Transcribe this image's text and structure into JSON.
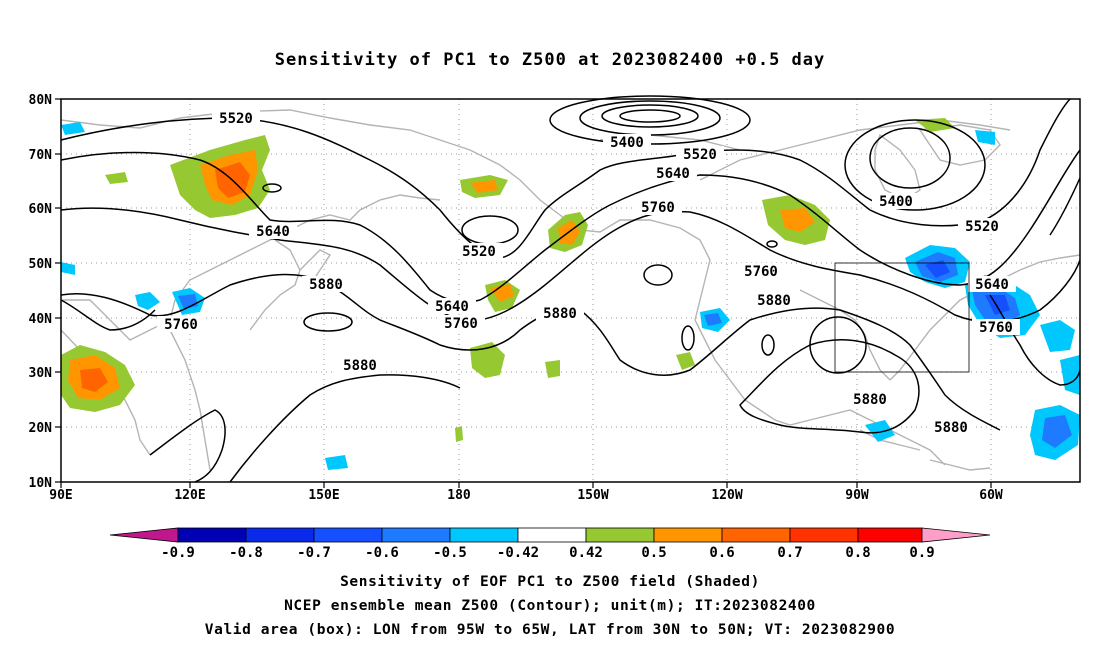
{
  "title": "Sensitivity of PC1 to Z500 at 2023082400 +0.5 day",
  "lat_ticks": [
    "80N",
    "70N",
    "60N",
    "50N",
    "40N",
    "30N",
    "20N",
    "10N"
  ],
  "lon_ticks": [
    "90E",
    "120E",
    "150E",
    "180",
    "150W",
    "120W",
    "90W",
    "60W"
  ],
  "contour_labels": {
    "c5520a": "5520",
    "c5400a": "5400",
    "c5520b": "5520",
    "c5640a": "5640",
    "c5760a": "5760",
    "c5400b": "5400",
    "c5520c": "5520",
    "c5640b": "5640",
    "c5520d": "5520",
    "c5880a": "5880",
    "c5640c": "5640",
    "c5760b": "5760",
    "c5760c": "5760",
    "c5880b": "5880",
    "c5760d": "5760",
    "c5880c": "5880",
    "c5640d": "5640",
    "c5760e": "5760",
    "c5880d": "5880",
    "c5880e": "5880",
    "c5880f": "5880"
  },
  "colorbar": {
    "labels": [
      "-0.9",
      "-0.8",
      "-0.7",
      "-0.6",
      "-0.5",
      "-0.42",
      "0.42",
      "0.5",
      "0.6",
      "0.7",
      "0.8",
      "0.9"
    ],
    "colors": [
      "#0000b4",
      "#0a2aeb",
      "#1450ff",
      "#1e7aff",
      "#00c8ff",
      "#ffffff",
      "#96c832",
      "#ff9600",
      "#ff6400",
      "#ff3200",
      "#ff0000"
    ],
    "low_color": "#c0188c",
    "high_color": "#ff9ec8"
  },
  "valid_box": {
    "lon_min": -95,
    "lon_max": -65,
    "lat_min": 30,
    "lat_max": 50
  },
  "footer": {
    "line1": "Sensitivity of EOF PC1 to Z500 field (Shaded)",
    "line2": "NCEP ensemble mean Z500 (Contour); unit(m); IT:2023082400",
    "line3": "Valid area (box): LON from 95W to 65W, LAT from 30N to 50N; VT: 2023082900"
  }
}
